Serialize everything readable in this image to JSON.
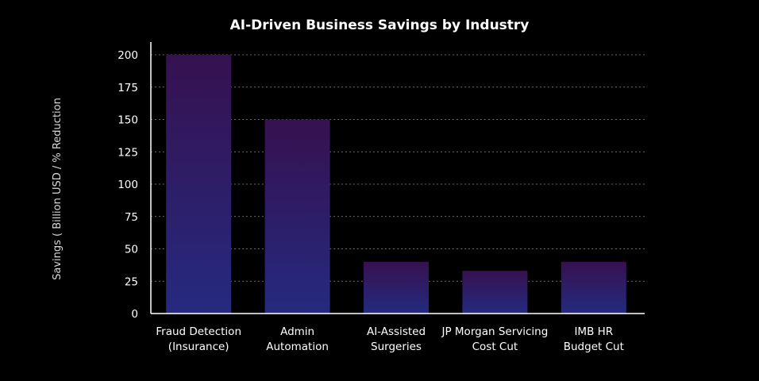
{
  "chart_data": {
    "type": "bar",
    "title": "AI-Driven Business Savings by Industry",
    "xlabel": "",
    "ylabel": "Savings ( Billion USD / % Reduction",
    "categories": [
      [
        "Fraud Detection",
        "(Insurance)"
      ],
      [
        "Admin",
        "Automation"
      ],
      [
        "AI-Assisted",
        "Surgeries"
      ],
      [
        "JP Morgan Servicing",
        "Cost Cut"
      ],
      [
        "IMB HR",
        "Budget Cut"
      ]
    ],
    "values": [
      200,
      150,
      40,
      33,
      40
    ],
    "ylim": [
      0,
      200
    ],
    "yticks": [
      0,
      25,
      50,
      75,
      100,
      125,
      150,
      175,
      200
    ],
    "grid": true,
    "colors": {
      "background": "#000000",
      "bar_top": "#36114f",
      "bar_bottom": "#252a80",
      "text": "#ffffff",
      "grid": "#8a8a8a"
    }
  }
}
